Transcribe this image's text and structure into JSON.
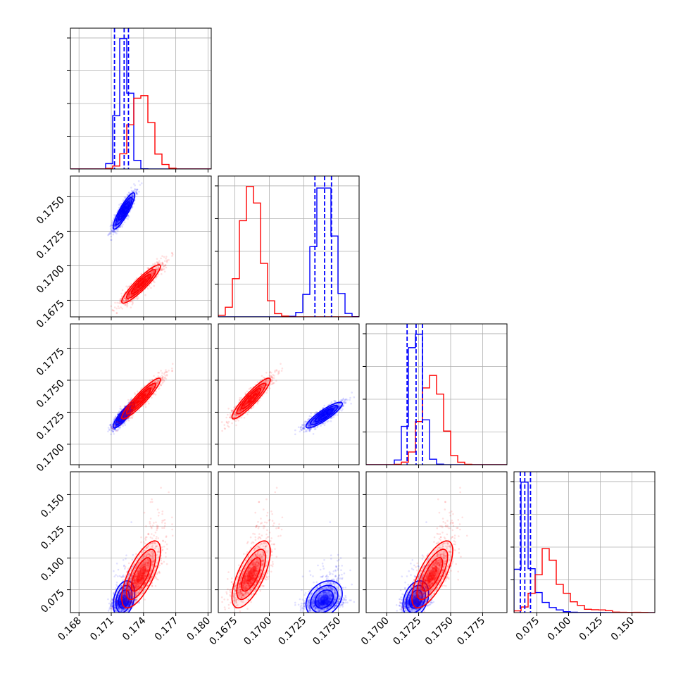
{
  "chart_data": {
    "type": "scatter",
    "subtype": "corner-plot",
    "title": "",
    "n_params": 4,
    "grid": true,
    "colors": {
      "series_a": "#0000ff",
      "series_b": "#ff0000"
    },
    "params": [
      {
        "range": [
          0.1672,
          0.1803
        ],
        "ticks": [
          0.168,
          0.171,
          0.174,
          0.177,
          0.18
        ],
        "tick_labels": [
          "0.168",
          "0.171",
          "0.174",
          "0.177",
          "0.180"
        ]
      },
      {
        "range": [
          0.1663,
          0.1765
        ],
        "ticks": [
          0.1675,
          0.17,
          0.1725,
          0.175
        ],
        "tick_labels": [
          "0.1675",
          "0.1700",
          "0.1725",
          "0.1750"
        ]
      },
      {
        "range": [
          0.1684,
          0.1794
        ],
        "ticks": [
          0.17,
          0.1725,
          0.175,
          0.1775
        ],
        "tick_labels": [
          "0.1700",
          "0.1725",
          "0.1750",
          "0.1775"
        ]
      },
      {
        "range": [
          0.057,
          0.168
        ],
        "ticks": [
          0.075,
          0.1,
          0.125,
          0.15
        ],
        "tick_labels": [
          "0.075",
          "0.100",
          "0.125",
          "0.150"
        ]
      }
    ],
    "series": [
      {
        "color": "#0000ff",
        "mean": [
          0.1722,
          0.174,
          0.1723,
          0.0657
        ],
        "sd": [
          0.0005,
          0.00065,
          0.0005,
          0.0035
        ],
        "corr": [
          [
            1,
            0.88,
            0.88,
            0.3
          ],
          [
            0.88,
            1,
            0.88,
            0.3
          ],
          [
            0.88,
            0.88,
            1,
            0.3
          ],
          [
            0.3,
            0.3,
            0.3,
            1
          ]
        ],
        "skew_tail": [
          0,
          0,
          0,
          0.015
        ],
        "quantile_lines": [
          [
            0.1713,
            0.1722,
            0.1726
          ],
          [
            0.1733,
            0.174,
            0.1745
          ],
          [
            0.1716,
            0.1723,
            0.1728
          ],
          [
            0.062,
            0.0655,
            0.07
          ]
        ]
      },
      {
        "color": "#ff0000",
        "mean": [
          0.1738,
          0.1687,
          0.1736,
          0.085
        ],
        "sd": [
          0.0009,
          0.0007,
          0.0008,
          0.009
        ],
        "corr": [
          [
            1,
            0.92,
            0.93,
            0.75
          ],
          [
            0.92,
            1,
            0.92,
            0.72
          ],
          [
            0.93,
            0.92,
            1,
            0.75
          ],
          [
            0.75,
            0.72,
            0.75,
            1
          ]
        ],
        "skew_tail": [
          0,
          0,
          0,
          0.02
        ],
        "quantile_lines": []
      }
    ]
  }
}
